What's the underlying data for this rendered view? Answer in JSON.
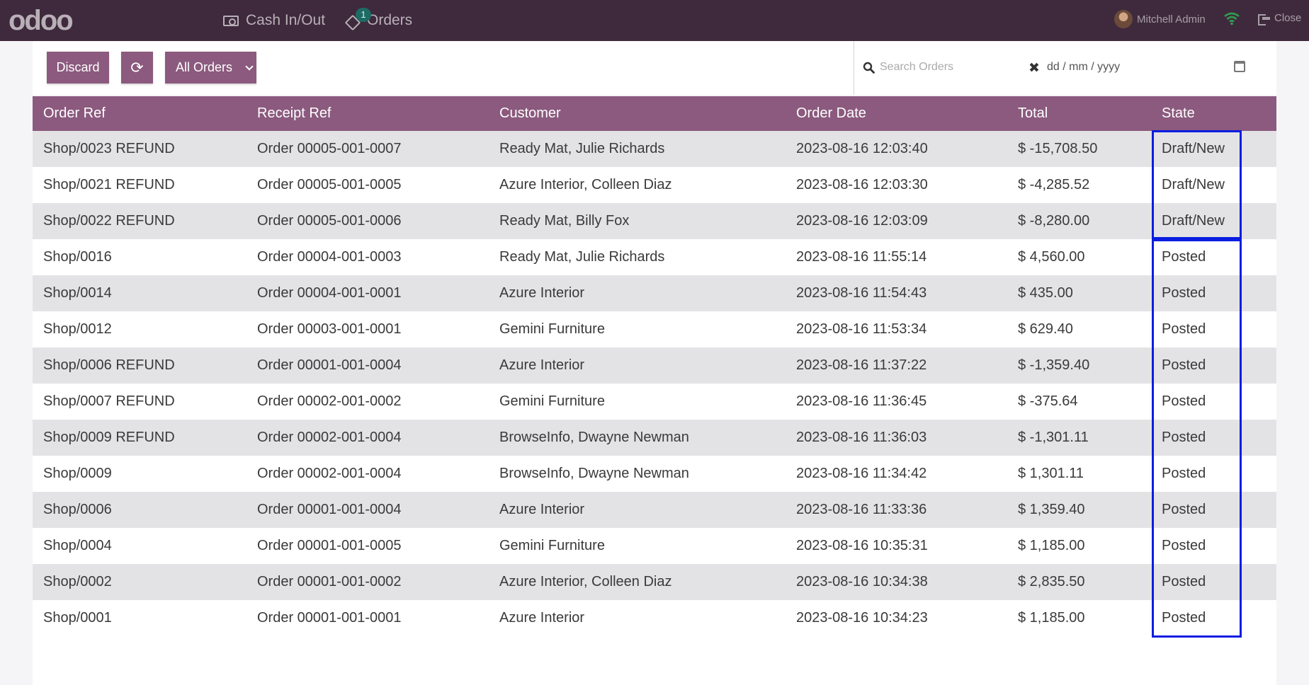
{
  "navbar": {
    "logo": "odoo",
    "cash_label": "Cash In/Out",
    "orders_label": "Orders",
    "orders_badge": "1",
    "user_name": "Mitchell Admin",
    "close_label": "Close"
  },
  "controls": {
    "discard_label": "Discard",
    "filter_label": "All Orders",
    "search_placeholder": "Search Orders",
    "date_placeholder": "dd / mm / yyyy"
  },
  "table": {
    "headers": [
      "Order Ref",
      "Receipt Ref",
      "Customer",
      "Order Date",
      "Total",
      "State"
    ],
    "rows": [
      {
        "order_ref": "Shop/0023 REFUND",
        "receipt_ref": "Order 00005-001-0007",
        "customer": "Ready Mat, Julie Richards",
        "date": "2023-08-16 12:03:40",
        "total": "$ -15,708.50",
        "state": "Draft/New"
      },
      {
        "order_ref": "Shop/0021 REFUND",
        "receipt_ref": "Order 00005-001-0005",
        "customer": "Azure Interior, Colleen Diaz",
        "date": "2023-08-16 12:03:30",
        "total": "$ -4,285.52",
        "state": "Draft/New"
      },
      {
        "order_ref": "Shop/0022 REFUND",
        "receipt_ref": "Order 00005-001-0006",
        "customer": "Ready Mat, Billy Fox",
        "date": "2023-08-16 12:03:09",
        "total": "$ -8,280.00",
        "state": "Draft/New"
      },
      {
        "order_ref": "Shop/0016",
        "receipt_ref": "Order 00004-001-0003",
        "customer": "Ready Mat, Julie Richards",
        "date": "2023-08-16 11:55:14",
        "total": "$ 4,560.00",
        "state": "Posted"
      },
      {
        "order_ref": "Shop/0014",
        "receipt_ref": "Order 00004-001-0001",
        "customer": "Azure Interior",
        "date": "2023-08-16 11:54:43",
        "total": "$ 435.00",
        "state": "Posted"
      },
      {
        "order_ref": "Shop/0012",
        "receipt_ref": "Order 00003-001-0001",
        "customer": "Gemini Furniture",
        "date": "2023-08-16 11:53:34",
        "total": "$ 629.40",
        "state": "Posted"
      },
      {
        "order_ref": "Shop/0006 REFUND",
        "receipt_ref": "Order 00001-001-0004",
        "customer": "Azure Interior",
        "date": "2023-08-16 11:37:22",
        "total": "$ -1,359.40",
        "state": "Posted"
      },
      {
        "order_ref": "Shop/0007 REFUND",
        "receipt_ref": "Order 00002-001-0002",
        "customer": "Gemini Furniture",
        "date": "2023-08-16 11:36:45",
        "total": "$ -375.64",
        "state": "Posted"
      },
      {
        "order_ref": "Shop/0009 REFUND",
        "receipt_ref": "Order 00002-001-0004",
        "customer": "BrowseInfo, Dwayne Newman",
        "date": "2023-08-16 11:36:03",
        "total": "$ -1,301.11",
        "state": "Posted"
      },
      {
        "order_ref": "Shop/0009",
        "receipt_ref": "Order 00002-001-0004",
        "customer": "BrowseInfo, Dwayne Newman",
        "date": "2023-08-16 11:34:42",
        "total": "$ 1,301.11",
        "state": "Posted"
      },
      {
        "order_ref": "Shop/0006",
        "receipt_ref": "Order 00001-001-0004",
        "customer": "Azure Interior",
        "date": "2023-08-16 11:33:36",
        "total": "$ 1,359.40",
        "state": "Posted"
      },
      {
        "order_ref": "Shop/0004",
        "receipt_ref": "Order 00001-001-0005",
        "customer": "Gemini Furniture",
        "date": "2023-08-16 10:35:31",
        "total": "$ 1,185.00",
        "state": "Posted"
      },
      {
        "order_ref": "Shop/0002",
        "receipt_ref": "Order 00001-001-0002",
        "customer": "Azure Interior, Colleen Diaz",
        "date": "2023-08-16 10:34:38",
        "total": "$ 2,835.50",
        "state": "Posted"
      },
      {
        "order_ref": "Shop/0001",
        "receipt_ref": "Order 00001-001-0001",
        "customer": "Azure Interior",
        "date": "2023-08-16 10:34:23",
        "total": "$ 1,185.00",
        "state": "Posted"
      }
    ]
  },
  "colors": {
    "navbar": "#3f2a3d",
    "accent": "#8b5a7e",
    "highlight": "#0a1de0"
  }
}
